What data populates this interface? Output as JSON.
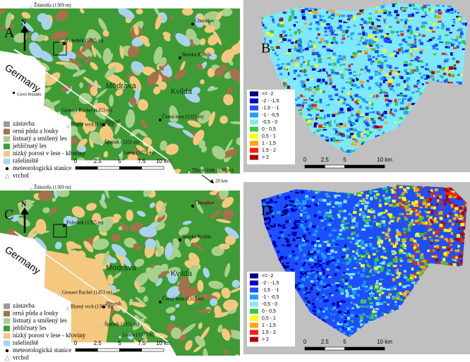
{
  "panels": [
    {
      "letter": "A",
      "north": "N",
      "country": "Germany",
      "inset_label": "Czech Republic",
      "places": [
        "Ždánidla (1309 m)",
        "Poledník (1315 m)",
        "Churáňov",
        "Horská Kvilda",
        "Modrava",
        "Kvilda",
        "Grosser Rachel (1453 m)",
        "Blatný vrch (1367 m)",
        "Březník",
        "Černá hora (1315 m)",
        "Špičník (1351 m)",
        "Lusen (1373 m)",
        "Třístoličník (1302m)"
      ],
      "offmap_distance": "20 km",
      "legend": [
        {
          "label": "zástavba",
          "color": "#9b9b9b"
        },
        {
          "label": "orná půda a louky",
          "color": "#a5714a"
        },
        {
          "label": "listnatý a smíšený les",
          "color": "#a8d08d"
        },
        {
          "label": "jehličnatý les",
          "color": "#3f9b35"
        },
        {
          "label": "nízký porost v lese - křoviny",
          "color": "#f5c87f"
        },
        {
          "label": "rašeliniště",
          "color": "#a9d3ec"
        },
        {
          "label": "meteorologická stanice",
          "symbol": "dot"
        },
        {
          "label": "vrchol",
          "symbol": "triangle"
        }
      ],
      "scale": [
        "0",
        "2.5",
        "5",
        "7.5",
        "10 km"
      ]
    },
    {
      "letter": "B",
      "legend": [
        {
          "label": "<= -2",
          "color": "#000080"
        },
        {
          "label": "-2 - -1,5",
          "color": "#0000cd"
        },
        {
          "label": "-1,5 - -1",
          "color": "#1e4fff"
        },
        {
          "label": "-1 - -0,5",
          "color": "#1ea0ff"
        },
        {
          "label": "-0,5 - 0",
          "color": "#7fe8ff"
        },
        {
          "label": "0 - 0,5",
          "color": "#3cc83c"
        },
        {
          "label": "0,5 - 1",
          "color": "#ffff00"
        },
        {
          "label": "1 - 1,5",
          "color": "#ffa500"
        },
        {
          "label": "1.5 - 2",
          "color": "#ff2000"
        },
        {
          "label": "> 2",
          "color": "#b00000"
        }
      ],
      "scale": [
        "0",
        "2.5",
        "5",
        "10 km"
      ]
    },
    {
      "letter": "C",
      "north": "N",
      "country": "Germany",
      "places": [
        "Ždánidla (1309 m)",
        "Poledník (1315 m)",
        "Churáňov",
        "Horská Kvilda",
        "Modrava",
        "Kvilda",
        "Grosser Rachel (1453 m)",
        "Blatný vrch (1367 m)",
        "Březník",
        "Černá hora (1315 m)",
        "Špičník (1351 m)",
        "Lusen (1373 m)"
      ],
      "legend": [
        {
          "label": "zástavba",
          "color": "#9b9b9b"
        },
        {
          "label": "orná půda a louky",
          "color": "#a5714a"
        },
        {
          "label": "listnatý a smíšený les",
          "color": "#a8d08d"
        },
        {
          "label": "jehličnatý les",
          "color": "#3f9b35"
        },
        {
          "label": "nízký porost v lese - křoviny",
          "color": "#f5c87f"
        },
        {
          "label": "rašeliniště",
          "color": "#a9d3ec"
        },
        {
          "label": "meteorologická stanice",
          "symbol": "dot"
        },
        {
          "label": "vrchol",
          "symbol": "triangle"
        }
      ],
      "scale": [
        "0",
        "2.5",
        "5",
        "7.5",
        "10 km"
      ]
    },
    {
      "letter": "D",
      "legend": [
        {
          "label": "<= -2",
          "color": "#000080"
        },
        {
          "label": "-2 - -1,5",
          "color": "#0000cd"
        },
        {
          "label": "-1,5 - -1",
          "color": "#1e4fff"
        },
        {
          "label": "-1 - -0,5",
          "color": "#1ea0ff"
        },
        {
          "label": "-0,5 - 0",
          "color": "#7fe8ff"
        },
        {
          "label": "0 - 0,5",
          "color": "#3cc83c"
        },
        {
          "label": "0,5 - 1",
          "color": "#ffff00"
        },
        {
          "label": "1 - 1,5",
          "color": "#ffa500"
        },
        {
          "label": "1.5 - 2",
          "color": "#ff2000"
        },
        {
          "label": "> 2",
          "color": "#b00000"
        }
      ],
      "scale": [
        "0",
        "2.5",
        "5",
        "10 km"
      ]
    }
  ]
}
